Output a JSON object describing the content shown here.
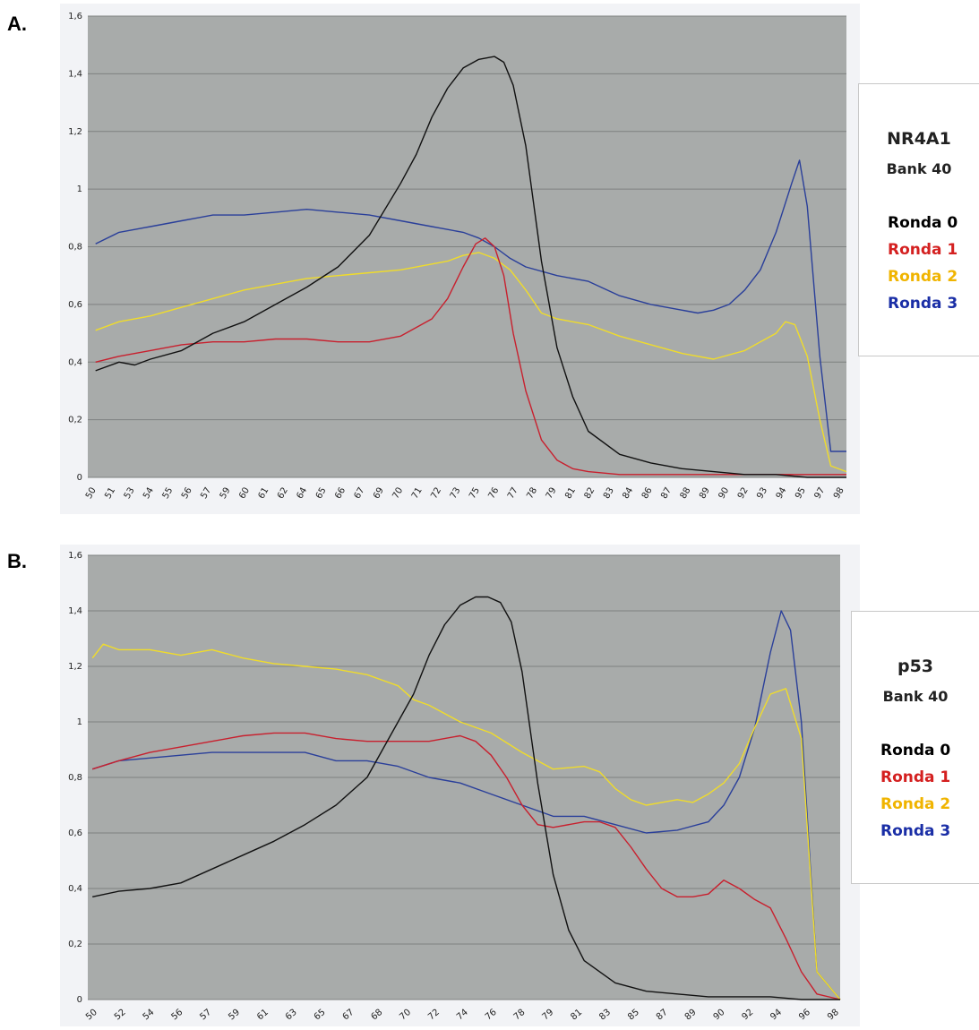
{
  "panels": [
    {
      "label": "A.",
      "legend": {
        "gene": "NR4A1",
        "bank": "Bank 40"
      }
    },
    {
      "label": "B.",
      "legend": {
        "gene": "p53",
        "bank": "Bank 40"
      }
    }
  ],
  "colors": {
    "Ronda 0": "#111111",
    "Ronda 1": "#c8202e",
    "Ronda 2": "#f0dc2a",
    "Ronda 3": "#2a3f9a"
  },
  "legend_text_colors": {
    "Ronda 0": "#000000",
    "Ronda 1": "#d42020",
    "Ronda 2": "#f0b400",
    "Ronda 3": "#1a2ea6"
  },
  "chart_data": [
    {
      "type": "line",
      "title": "",
      "xlabel": "",
      "ylabel": "",
      "ylim": [
        0,
        1.6
      ],
      "xlim": [
        50,
        98.5
      ],
      "grid": true,
      "legend_position": "right",
      "y_ticks": [
        "0",
        "0,2",
        "0,4",
        "0,6",
        "0,8",
        "1",
        "1,2",
        "1,4",
        "1,6"
      ],
      "x_ticks": [
        "50",
        "51",
        "53",
        "54",
        "55",
        "56",
        "57",
        "59",
        "60",
        "61",
        "62",
        "64",
        "65",
        "66",
        "67",
        "69",
        "70",
        "71",
        "72",
        "73",
        "75",
        "76",
        "77",
        "78",
        "79",
        "81",
        "82",
        "83",
        "84",
        "86",
        "87",
        "88",
        "89",
        "90",
        "92",
        "93",
        "94",
        "95",
        "97",
        "98"
      ],
      "series": [
        {
          "name": "Ronda 0",
          "x": [
            50.5,
            52,
            53,
            54,
            56,
            58,
            60,
            62,
            64,
            66,
            68,
            70,
            71,
            72,
            73,
            74,
            75,
            76,
            76.6,
            77.2,
            78,
            79,
            80,
            81,
            82,
            84,
            86,
            88,
            90,
            92,
            94,
            96,
            98.5
          ],
          "y": [
            0.37,
            0.4,
            0.39,
            0.41,
            0.44,
            0.5,
            0.54,
            0.6,
            0.66,
            0.73,
            0.84,
            1.02,
            1.12,
            1.25,
            1.35,
            1.42,
            1.45,
            1.46,
            1.44,
            1.36,
            1.15,
            0.75,
            0.45,
            0.28,
            0.16,
            0.08,
            0.05,
            0.03,
            0.02,
            0.01,
            0.01,
            0.0,
            0.0
          ]
        },
        {
          "name": "Ronda 1",
          "x": [
            50.5,
            52,
            54,
            56,
            58,
            60,
            62,
            64,
            66,
            68,
            70,
            72,
            73,
            74,
            74.8,
            75.4,
            76,
            76.6,
            77.2,
            78,
            79,
            80,
            81,
            82,
            84,
            86,
            90,
            94,
            98.5
          ],
          "y": [
            0.4,
            0.42,
            0.44,
            0.46,
            0.47,
            0.47,
            0.48,
            0.48,
            0.47,
            0.47,
            0.49,
            0.55,
            0.62,
            0.73,
            0.81,
            0.83,
            0.8,
            0.7,
            0.5,
            0.3,
            0.13,
            0.06,
            0.03,
            0.02,
            0.01,
            0.01,
            0.01,
            0.01,
            0.01
          ]
        },
        {
          "name": "Ronda 2",
          "x": [
            50.5,
            52,
            54,
            56,
            58,
            60,
            62,
            64,
            66,
            68,
            70,
            72,
            73,
            74,
            75,
            76,
            77,
            78,
            79,
            80,
            82,
            84,
            86,
            88,
            90,
            92,
            93,
            94,
            94.6,
            95.2,
            96,
            96.8,
            97.5,
            98.5
          ],
          "y": [
            0.51,
            0.54,
            0.56,
            0.59,
            0.62,
            0.65,
            0.67,
            0.69,
            0.7,
            0.71,
            0.72,
            0.74,
            0.75,
            0.77,
            0.78,
            0.76,
            0.72,
            0.65,
            0.57,
            0.55,
            0.53,
            0.49,
            0.46,
            0.43,
            0.41,
            0.44,
            0.47,
            0.5,
            0.54,
            0.53,
            0.42,
            0.2,
            0.04,
            0.02
          ]
        },
        {
          "name": "Ronda 3",
          "x": [
            50.5,
            52,
            54,
            56,
            57,
            58,
            59,
            60,
            62,
            64,
            66,
            68,
            70,
            72,
            73,
            74,
            75,
            76,
            77,
            78,
            80,
            82,
            84,
            86,
            88,
            89,
            90,
            91,
            92,
            93,
            94,
            95,
            95.5,
            96,
            96.8,
            97.5,
            98.5
          ],
          "y": [
            0.81,
            0.85,
            0.87,
            0.89,
            0.9,
            0.91,
            0.91,
            0.91,
            0.92,
            0.93,
            0.92,
            0.91,
            0.89,
            0.87,
            0.86,
            0.85,
            0.83,
            0.8,
            0.76,
            0.73,
            0.7,
            0.68,
            0.63,
            0.6,
            0.58,
            0.57,
            0.58,
            0.6,
            0.65,
            0.72,
            0.85,
            1.02,
            1.1,
            0.94,
            0.42,
            0.09,
            0.09
          ]
        }
      ]
    },
    {
      "type": "line",
      "title": "",
      "xlabel": "",
      "ylabel": "",
      "ylim": [
        0,
        1.6
      ],
      "xlim": [
        50,
        98.5
      ],
      "grid": true,
      "legend_position": "right",
      "y_ticks": [
        "0",
        "0,2",
        "0,4",
        "0,6",
        "0,8",
        "1",
        "1,2",
        "1,4",
        "1,6"
      ],
      "x_ticks": [
        "50",
        "52",
        "54",
        "56",
        "57",
        "59",
        "61",
        "63",
        "65",
        "67",
        "68",
        "70",
        "72",
        "74",
        "76",
        "78",
        "79",
        "81",
        "83",
        "85",
        "87",
        "89",
        "90",
        "92",
        "94",
        "96",
        "98"
      ],
      "series": [
        {
          "name": "Ronda 0",
          "x": [
            50.3,
            52,
            54,
            56,
            58,
            60,
            62,
            64,
            66,
            68,
            70,
            71,
            72,
            73,
            74,
            75,
            75.8,
            76.6,
            77.3,
            78,
            79,
            80,
            81,
            82,
            84,
            86,
            88,
            90,
            92,
            94,
            96,
            98.5
          ],
          "y": [
            0.37,
            0.39,
            0.4,
            0.42,
            0.47,
            0.52,
            0.57,
            0.63,
            0.7,
            0.8,
            1.0,
            1.1,
            1.24,
            1.35,
            1.42,
            1.45,
            1.45,
            1.43,
            1.36,
            1.18,
            0.78,
            0.45,
            0.25,
            0.14,
            0.06,
            0.03,
            0.02,
            0.01,
            0.01,
            0.01,
            0.0,
            0.0
          ]
        },
        {
          "name": "Ronda 1",
          "x": [
            50.3,
            52,
            54,
            56,
            58,
            60,
            62,
            64,
            66,
            68,
            70,
            72,
            73,
            74,
            75,
            76,
            77,
            78,
            79,
            80,
            82,
            83,
            84,
            85,
            86,
            87,
            88,
            89,
            90,
            91,
            92,
            93,
            94,
            95,
            96,
            97,
            98.5
          ],
          "y": [
            0.83,
            0.86,
            0.89,
            0.91,
            0.93,
            0.95,
            0.96,
            0.96,
            0.94,
            0.93,
            0.93,
            0.93,
            0.94,
            0.95,
            0.93,
            0.88,
            0.8,
            0.7,
            0.63,
            0.62,
            0.64,
            0.64,
            0.62,
            0.55,
            0.47,
            0.4,
            0.37,
            0.37,
            0.38,
            0.43,
            0.4,
            0.36,
            0.33,
            0.22,
            0.1,
            0.02,
            0.0
          ]
        },
        {
          "name": "Ronda 2",
          "x": [
            50.3,
            51,
            52,
            54,
            56,
            58,
            60,
            62,
            64,
            66,
            68,
            70,
            71,
            72,
            74,
            76,
            78,
            80,
            82,
            83,
            84,
            85,
            86,
            87,
            88,
            89,
            90,
            91,
            92,
            93,
            94,
            95,
            96,
            97,
            98.5
          ],
          "y": [
            1.23,
            1.28,
            1.26,
            1.26,
            1.24,
            1.26,
            1.23,
            1.21,
            1.2,
            1.19,
            1.17,
            1.13,
            1.08,
            1.06,
            1.0,
            0.96,
            0.89,
            0.83,
            0.84,
            0.82,
            0.76,
            0.72,
            0.7,
            0.71,
            0.72,
            0.71,
            0.74,
            0.78,
            0.85,
            0.98,
            1.1,
            1.12,
            0.94,
            0.1,
            0.0
          ]
        },
        {
          "name": "Ronda 3",
          "x": [
            50.3,
            52,
            54,
            56,
            58,
            60,
            62,
            64,
            66,
            68,
            70,
            72,
            74,
            76,
            78,
            80,
            82,
            84,
            86,
            88,
            90,
            91,
            92,
            93,
            94,
            94.7,
            95.3,
            96,
            97,
            98.5
          ],
          "y": [
            0.83,
            0.86,
            0.87,
            0.88,
            0.89,
            0.89,
            0.89,
            0.89,
            0.86,
            0.86,
            0.84,
            0.8,
            0.78,
            0.74,
            0.7,
            0.66,
            0.66,
            0.63,
            0.6,
            0.61,
            0.64,
            0.7,
            0.8,
            0.98,
            1.25,
            1.4,
            1.33,
            1.0,
            0.1,
            0.0
          ]
        }
      ]
    }
  ]
}
